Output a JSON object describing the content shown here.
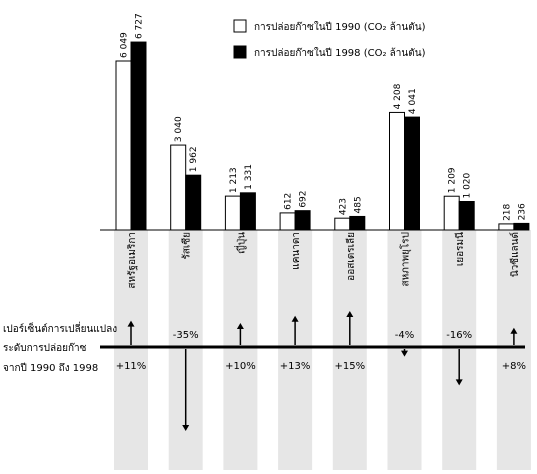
{
  "chart_data": {
    "type": "bar",
    "legend": {
      "placement": "top-right",
      "entries": [
        {
          "label": "การปล่อยก๊าซในปี 1990 (CO₂ ล้านตัน)",
          "fill": "#ffffff"
        },
        {
          "label": "การปล่อยก๊าซในปี 1998 (CO₂ ล้านตัน)",
          "fill": "#000000"
        }
      ]
    },
    "categories": [
      "สหรัฐอเมริกา",
      "รัสเซีย",
      "ญี่ปุ่น",
      "แคนาดา",
      "ออสเตรเลีย",
      "สหภาพยุโรป",
      "เยอรมนี",
      "นิวซีแลนด์"
    ],
    "series": [
      {
        "name": "การปล่อยก๊าซในปี 1990 (CO₂ ล้านตัน)",
        "values": [
          6049,
          3040,
          1213,
          612,
          423,
          4208,
          1209,
          218
        ],
        "labels": [
          "6 049",
          "3 040",
          "1 213",
          "612",
          "423",
          "4 208",
          "1 209",
          "218"
        ]
      },
      {
        "name": "การปล่อยก๊าซในปี 1998 (CO₂ ล้านตัน)",
        "values": [
          6727,
          1962,
          1331,
          692,
          485,
          4041,
          1020,
          236
        ],
        "labels": [
          "6 727",
          "1 962",
          "1 331",
          "692",
          "485",
          "4 041",
          "1 020",
          "236"
        ]
      }
    ],
    "change_percent": [
      11,
      -35,
      10,
      13,
      15,
      -4,
      -16,
      8
    ],
    "change_labels": [
      "+11%",
      "-35%",
      "+10%",
      "+13%",
      "+15%",
      "-4%",
      "-16%",
      "+8%"
    ],
    "change_axis_label": [
      "เปอร์เซ็นต์การเปลี่ยนแปลง",
      "ระดับการปล่อยก๊าซ",
      "จากปี 1990 ถึง 1998"
    ],
    "colors": {
      "band": "#e6e6e6",
      "bar_1990": "#ffffff",
      "bar_1998": "#000000"
    }
  }
}
